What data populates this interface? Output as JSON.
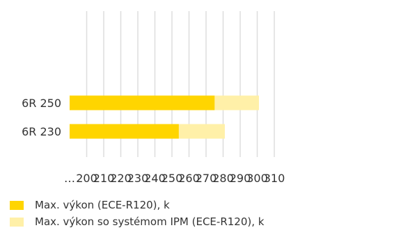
{
  "chart_data": {
    "type": "bar",
    "orientation": "horizontal",
    "stacked": false,
    "categories": [
      "6R 250",
      "6R 230"
    ],
    "series": [
      {
        "name": "Max. výkon (ECE-R120), k",
        "color": "#FFD500",
        "values": [
          275,
          254
        ]
      },
      {
        "name": "Max. výkon so systémom IPM (ECE-R120), k",
        "color": "#FFF0A8",
        "values": [
          301,
          281
        ]
      }
    ],
    "x_tick_labels": [
      "…",
      "200",
      "210",
      "220",
      "230",
      "240",
      "250",
      "260",
      "270",
      "280",
      "290",
      "300",
      "310"
    ],
    "xlim": [
      190,
      310
    ],
    "grid": true,
    "legend_position": "bottom-left"
  }
}
